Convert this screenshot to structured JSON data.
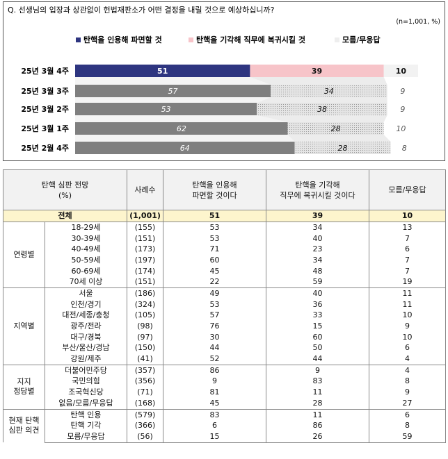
{
  "chart_data": {
    "type": "bar",
    "title": "Q. 선생님의 입장과 상관없이 헌법재판소가 어떤 결정을 내릴 것으로 예상하십니까?",
    "note": "(n=1,001, %)",
    "categories": [
      "25년 3월 4주",
      "25년 3월 3주",
      "25년 3월 2주",
      "25년 3월 1주",
      "25년 2월 4주"
    ],
    "series": [
      {
        "name": "탄핵을 인용해 파면할 것",
        "values": [
          51,
          57,
          53,
          62,
          64
        ]
      },
      {
        "name": "탄핵을 기각해 직무에 복귀시킬 것",
        "values": [
          39,
          34,
          38,
          28,
          28
        ]
      },
      {
        "name": "모름/무응답",
        "values": [
          10,
          9,
          9,
          10,
          8
        ]
      }
    ],
    "stacked": true,
    "legend_position": "top",
    "colors": {
      "primary": "#2e3580",
      "secondary": "#f7c4c9",
      "gray": "#7f7f7f",
      "pattern": "#e4e4e4"
    }
  },
  "table": {
    "headers": {
      "category": [
        "탄핵 심판 전망",
        "(%)"
      ],
      "sample": "사례수",
      "col1": [
        "탄핵을 인용해",
        "파면할 것이다"
      ],
      "col2": [
        "탄핵을 기각해",
        "직무에 복귀시킬 것이다"
      ],
      "col3": "모름/무응답"
    },
    "total": {
      "label": "전체",
      "n": "(1,001)",
      "v1": "51",
      "v2": "39",
      "v3": "10"
    },
    "groups": [
      {
        "label": [
          "연령별"
        ],
        "rows": [
          {
            "sub": "18-29세",
            "n": "(155)",
            "v1": "53",
            "v2": "34",
            "v3": "13"
          },
          {
            "sub": "30-39세",
            "n": "(151)",
            "v1": "53",
            "v2": "40",
            "v3": "7"
          },
          {
            "sub": "40-49세",
            "n": "(173)",
            "v1": "71",
            "v2": "23",
            "v3": "6"
          },
          {
            "sub": "50-59세",
            "n": "(197)",
            "v1": "60",
            "v2": "34",
            "v3": "7"
          },
          {
            "sub": "60-69세",
            "n": "(174)",
            "v1": "45",
            "v2": "48",
            "v3": "7"
          },
          {
            "sub": "70세 이상",
            "n": "(151)",
            "v1": "22",
            "v2": "59",
            "v3": "19"
          }
        ]
      },
      {
        "label": [
          "지역별"
        ],
        "rows": [
          {
            "sub": "서울",
            "n": "(186)",
            "v1": "49",
            "v2": "40",
            "v3": "11"
          },
          {
            "sub": "인천/경기",
            "n": "(324)",
            "v1": "53",
            "v2": "36",
            "v3": "11"
          },
          {
            "sub": "대전/세종/충청",
            "n": "(105)",
            "v1": "57",
            "v2": "33",
            "v3": "10"
          },
          {
            "sub": "광주/전라",
            "n": "(98)",
            "v1": "76",
            "v2": "15",
            "v3": "9"
          },
          {
            "sub": "대구/경북",
            "n": "(97)",
            "v1": "30",
            "v2": "60",
            "v3": "10"
          },
          {
            "sub": "부산/울산/경남",
            "n": "(150)",
            "v1": "44",
            "v2": "50",
            "v3": "6"
          },
          {
            "sub": "강원/제주",
            "n": "(41)",
            "v1": "52",
            "v2": "44",
            "v3": "4"
          }
        ]
      },
      {
        "label": [
          "지지",
          "정당별"
        ],
        "rows": [
          {
            "sub": "더불어민주당",
            "n": "(357)",
            "v1": "86",
            "v2": "9",
            "v3": "4"
          },
          {
            "sub": "국민의힘",
            "n": "(356)",
            "v1": "9",
            "v2": "83",
            "v3": "8"
          },
          {
            "sub": "조국혁신당",
            "n": "(71)",
            "v1": "81",
            "v2": "11",
            "v3": "9"
          },
          {
            "sub": "없음/모름/무응답",
            "n": "(168)",
            "v1": "45",
            "v2": "28",
            "v3": "27"
          }
        ]
      },
      {
        "label": [
          "현재 탄핵",
          "심판 의견"
        ],
        "rows": [
          {
            "sub": "탄핵 인용",
            "n": "(579)",
            "v1": "83",
            "v2": "11",
            "v3": "6"
          },
          {
            "sub": "탄핵 기각",
            "n": "(366)",
            "v1": "6",
            "v2": "86",
            "v3": "8"
          },
          {
            "sub": "모름/무응답",
            "n": "(56)",
            "v1": "15",
            "v2": "26",
            "v3": "59"
          }
        ]
      }
    ]
  }
}
